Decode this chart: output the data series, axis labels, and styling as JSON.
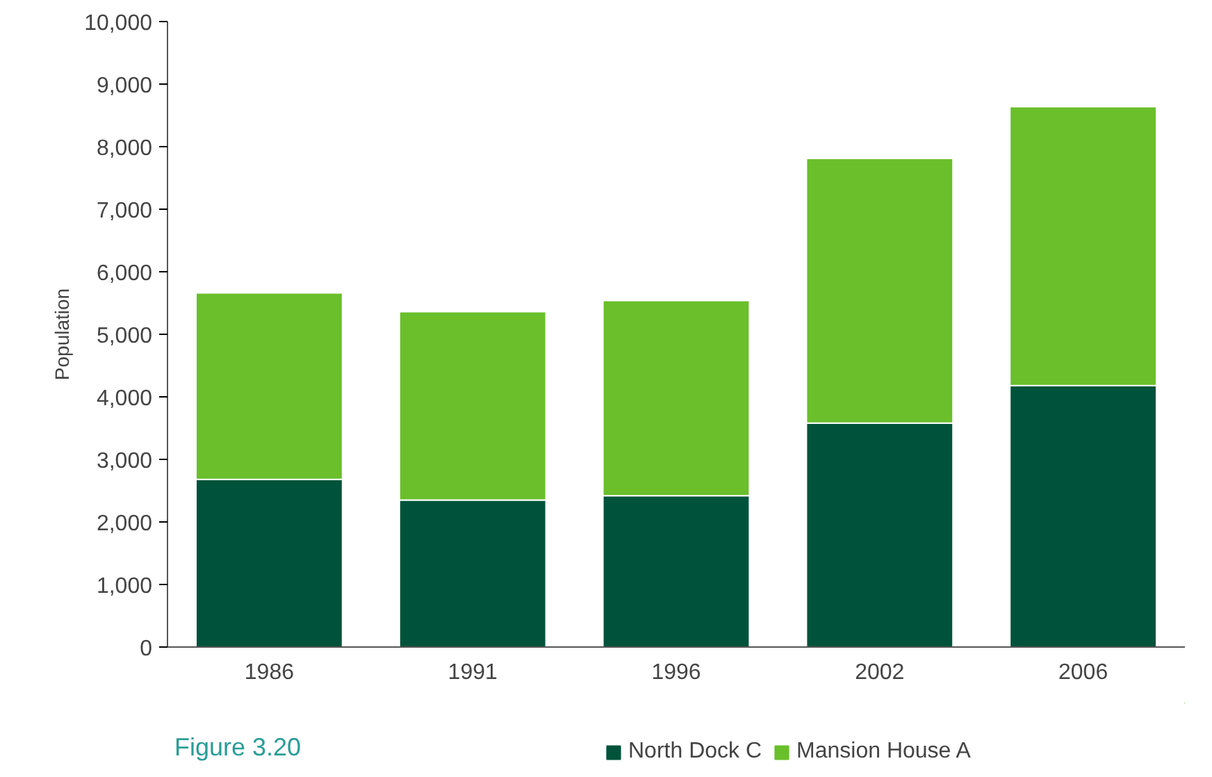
{
  "chart_data": {
    "type": "bar",
    "stacked": true,
    "ylabel": "Population",
    "categories": [
      "1986",
      "1991",
      "1996",
      "2002",
      "2006"
    ],
    "series": [
      {
        "name": "North Dock C",
        "color": "#00533a",
        "values": [
          2680,
          2350,
          2420,
          3580,
          4180
        ]
      },
      {
        "name": "Mansion House A",
        "color": "#6abf2b",
        "values": [
          2980,
          3010,
          3120,
          4230,
          4460
        ]
      }
    ],
    "ylim": [
      0,
      10000
    ],
    "yticks": [
      {
        "value": 0,
        "label": "0"
      },
      {
        "value": 1000,
        "label": "1,000"
      },
      {
        "value": 2000,
        "label": "2,000"
      },
      {
        "value": 3000,
        "label": "3,000"
      },
      {
        "value": 4000,
        "label": "4,000"
      },
      {
        "value": 5000,
        "label": "5,000"
      },
      {
        "value": 6000,
        "label": "6,000"
      },
      {
        "value": 7000,
        "label": "7,000"
      },
      {
        "value": 8000,
        "label": "8,000"
      },
      {
        "value": 9000,
        "label": "9,000"
      },
      {
        "value": 10000,
        "label": "10,000"
      }
    ],
    "grid": false,
    "legend": "bottom",
    "annotations": [
      "Figure 3.20"
    ]
  }
}
